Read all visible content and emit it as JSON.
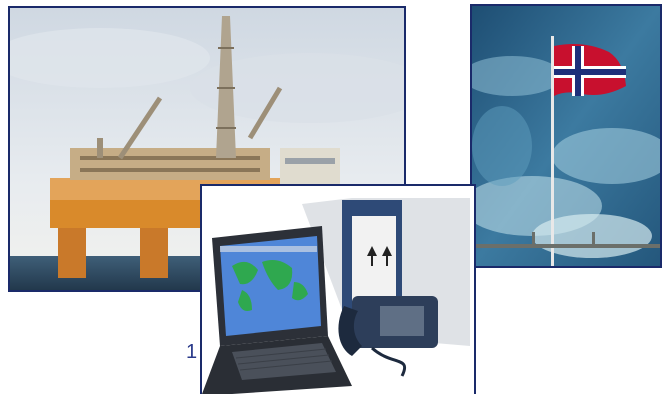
{
  "photos": {
    "oil_platform": {
      "icon": "oil-platform-photo"
    },
    "norwegian_flag": {
      "icon": "norwegian-flag-photo"
    },
    "laptop_satphone": {
      "icon": "laptop-satellite-phone-photo"
    }
  },
  "caption": {
    "number": "1"
  },
  "colors": {
    "frame_border": "#1a2a6a",
    "caption_text": "#2a3a8a",
    "flag_red": "#c8102e",
    "flag_blue": "#1d2f7a",
    "sea": "#2b5f86",
    "platform_orange": "#d98a2b",
    "map_green": "#2fa84f",
    "map_blue": "#2b6fd0"
  }
}
